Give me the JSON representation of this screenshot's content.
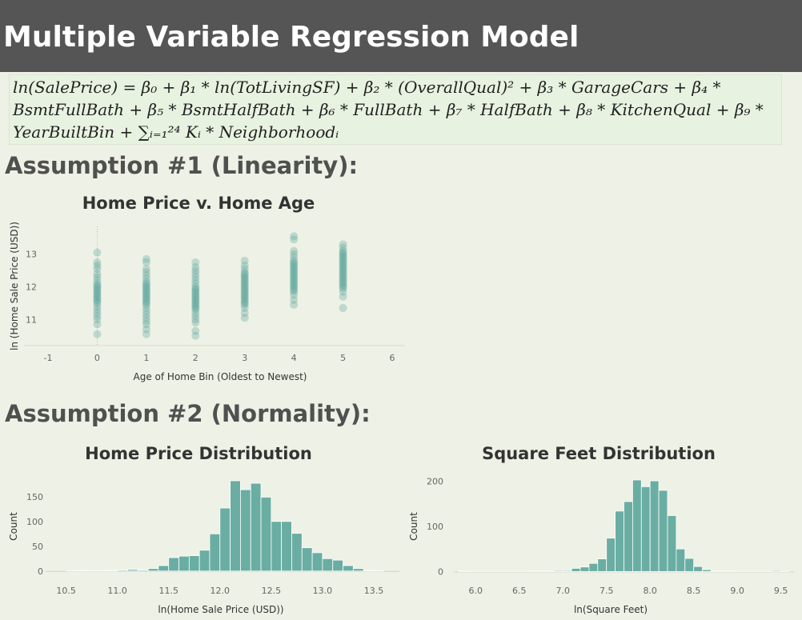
{
  "header": {
    "title": "Multiple Variable Regression Model"
  },
  "formula": {
    "line1": "ln(SalePrice) = β₀ + β₁ * ln(TotLivingSF) + β₂ * (OverallQual)² + β₃ * GarageCars + β₄ *",
    "line2": "BsmtFullBath + β₅ * BsmtHalfBath + β₆ * FullBath + β₇ * HalfBath + β₈ * KitchenQual + β₉ *",
    "line3": "YearBuiltBin + ∑ᵢ₌₁²⁴ Kᵢ * Neighborhoodᵢ"
  },
  "sections": {
    "linearity": "Assumption #1 (Linearity):",
    "normality": "Assumption #2 (Normality):"
  },
  "colors": {
    "teal": "#5aa69c",
    "teal_fill": "#6aada3",
    "zero_line": "#aaaaaa"
  },
  "chart_data": [
    {
      "type": "scatter",
      "title": "Home Price v. Home Age",
      "xlabel": "Age of Home Bin (Oldest to Newest)",
      "ylabel": "ln (Home Sale Price (USD))",
      "xlim": [
        -1,
        6
      ],
      "ylim": [
        10.2,
        13.85
      ],
      "xticks": [
        "-1",
        "0",
        "1",
        "2",
        "3",
        "4",
        "5",
        "6"
      ],
      "yticks": [
        "11",
        "12",
        "13"
      ],
      "series": [
        {
          "x": 0,
          "y": [
            10.55,
            10.85,
            11.0,
            11.1,
            11.2,
            11.3,
            11.4,
            11.5,
            11.55,
            11.6,
            11.65,
            11.7,
            11.75,
            11.8,
            11.85,
            11.9,
            11.95,
            12.0,
            12.05,
            12.1,
            12.2,
            12.3,
            12.4,
            12.55,
            12.65,
            12.75,
            13.05
          ]
        },
        {
          "x": 1,
          "y": [
            10.55,
            10.7,
            10.85,
            10.95,
            11.05,
            11.15,
            11.25,
            11.35,
            11.45,
            11.5,
            11.55,
            11.6,
            11.65,
            11.7,
            11.75,
            11.8,
            11.85,
            11.9,
            11.95,
            12.0,
            12.05,
            12.1,
            12.15,
            12.25,
            12.35,
            12.45,
            12.55,
            12.75,
            12.85
          ]
        },
        {
          "x": 2,
          "y": [
            10.5,
            10.65,
            10.9,
            11.0,
            11.1,
            11.2,
            11.3,
            11.35,
            11.4,
            11.45,
            11.5,
            11.55,
            11.6,
            11.65,
            11.7,
            11.75,
            11.8,
            11.85,
            11.9,
            11.95,
            12.0,
            12.1,
            12.2,
            12.3,
            12.4,
            12.5,
            12.6,
            12.75
          ]
        },
        {
          "x": 3,
          "y": [
            11.05,
            11.2,
            11.35,
            11.45,
            11.5,
            11.55,
            11.6,
            11.65,
            11.7,
            11.75,
            11.8,
            11.85,
            11.9,
            11.95,
            12.0,
            12.05,
            12.1,
            12.15,
            12.2,
            12.25,
            12.3,
            12.35,
            12.4,
            12.45,
            12.55,
            12.65,
            12.8
          ]
        },
        {
          "x": 4,
          "y": [
            11.45,
            11.6,
            11.75,
            11.85,
            11.9,
            11.95,
            12.0,
            12.05,
            12.1,
            12.15,
            12.2,
            12.25,
            12.3,
            12.35,
            12.4,
            12.45,
            12.5,
            12.55,
            12.6,
            12.65,
            12.7,
            12.75,
            12.8,
            12.9,
            13.0,
            13.1,
            13.45,
            13.55
          ]
        },
        {
          "x": 5,
          "y": [
            11.35,
            11.7,
            11.85,
            11.95,
            12.0,
            12.05,
            12.1,
            12.15,
            12.2,
            12.25,
            12.3,
            12.35,
            12.4,
            12.45,
            12.5,
            12.55,
            12.6,
            12.65,
            12.7,
            12.75,
            12.8,
            12.85,
            12.9,
            12.95,
            13.0,
            13.05,
            13.1,
            13.2,
            13.3
          ]
        }
      ]
    },
    {
      "type": "bar",
      "title": "Home Price Distribution",
      "xlabel": "ln(Home Sale Price (USD))",
      "ylabel": "Count",
      "xlim": [
        10.3,
        13.75
      ],
      "ylim": [
        -10,
        190
      ],
      "xticks": [
        "10.5",
        "11.0",
        "11.5",
        "12.0",
        "12.5",
        "13.0",
        "13.5"
      ],
      "yticks": [
        "0",
        "50",
        "100",
        "150"
      ],
      "bin_width": 0.1,
      "bin_starts": [
        10.5,
        10.6,
        10.7,
        10.8,
        10.9,
        11.0,
        11.1,
        11.2,
        11.3,
        11.4,
        11.5,
        11.6,
        11.7,
        11.8,
        11.9,
        12.0,
        12.1,
        12.2,
        12.3,
        12.4,
        12.5,
        12.6,
        12.7,
        12.8,
        12.9,
        13.0,
        13.1,
        13.2,
        13.3,
        13.4,
        13.5
      ],
      "values": [
        0,
        1,
        0,
        0,
        1,
        2,
        3,
        2,
        5,
        11,
        27,
        30,
        31,
        42,
        75,
        127,
        182,
        164,
        177,
        149,
        100,
        100,
        76,
        47,
        37,
        25,
        22,
        11,
        5,
        1,
        0
      ]
    },
    {
      "type": "bar",
      "title": "Square Feet Distribution",
      "xlabel": "ln(Square Feet)",
      "ylabel": "Count",
      "xlim": [
        5.75,
        9.65
      ],
      "ylim": [
        -10,
        210
      ],
      "xticks": [
        "6.0",
        "6.5",
        "7.0",
        "7.5",
        "8.0",
        "8.5",
        "9.0",
        "9.5"
      ],
      "yticks": [
        "0",
        "100",
        "200"
      ],
      "bin_width": 0.1,
      "bin_starts": [
        5.8,
        5.9,
        6.0,
        6.1,
        6.2,
        6.3,
        6.4,
        6.5,
        6.6,
        6.7,
        6.8,
        6.9,
        7.0,
        7.1,
        7.2,
        7.3,
        7.4,
        7.5,
        7.6,
        7.7,
        7.8,
        7.9,
        8.0,
        8.1,
        8.2,
        8.3,
        8.4,
        8.5,
        8.6,
        8.7,
        8.8,
        8.9,
        9.0,
        9.1,
        9.2,
        9.3,
        9.4,
        9.5
      ],
      "values": [
        1,
        0,
        0,
        0,
        0,
        0,
        0,
        0,
        1,
        1,
        1,
        2,
        2,
        7,
        10,
        18,
        28,
        74,
        134,
        155,
        203,
        188,
        201,
        180,
        124,
        50,
        29,
        11,
        4,
        1,
        1,
        1,
        0,
        0,
        0,
        0,
        2,
        0
      ]
    }
  ]
}
